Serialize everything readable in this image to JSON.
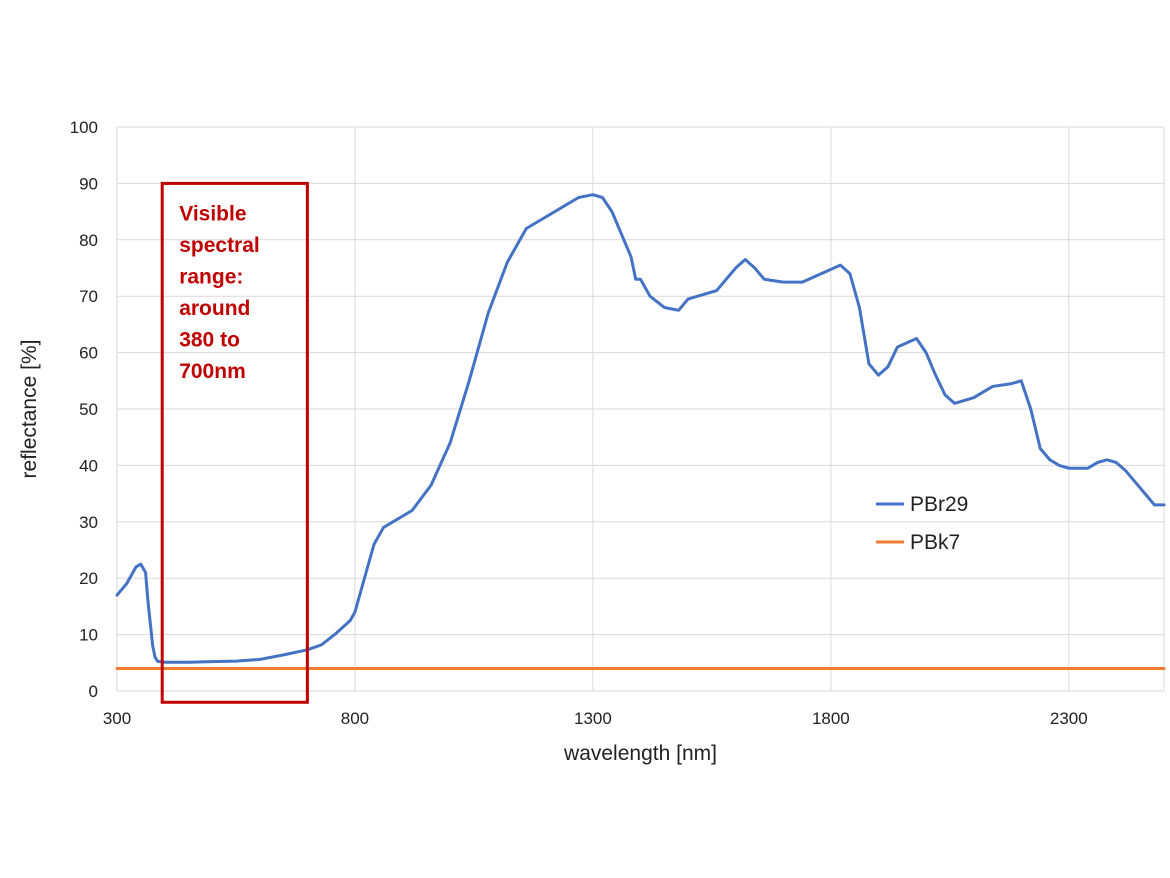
{
  "chart_data": {
    "type": "line",
    "xlabel": "wavelength [nm]",
    "ylabel": "reflectance [%]",
    "xlim": [
      300,
      2500
    ],
    "ylim": [
      0,
      100
    ],
    "xticks": [
      300,
      800,
      1300,
      1800,
      2300
    ],
    "yticks": [
      0,
      10,
      20,
      30,
      40,
      50,
      60,
      70,
      80,
      90,
      100
    ],
    "grid": true,
    "legend_position": "right",
    "series": [
      {
        "name": "PBr29",
        "color": "#4472c4",
        "x": [
          300,
          320,
          340,
          350,
          360,
          365,
          375,
          380,
          385,
          390,
          400,
          450,
          500,
          550,
          600,
          650,
          700,
          730,
          760,
          790,
          800,
          820,
          840,
          860,
          880,
          920,
          960,
          1000,
          1040,
          1080,
          1120,
          1160,
          1200,
          1240,
          1270,
          1300,
          1320,
          1340,
          1360,
          1380,
          1390,
          1400,
          1420,
          1450,
          1480,
          1500,
          1520,
          1560,
          1600,
          1620,
          1640,
          1660,
          1700,
          1740,
          1780,
          1820,
          1840,
          1860,
          1880,
          1900,
          1920,
          1940,
          1980,
          2000,
          2020,
          2040,
          2060,
          2080,
          2100,
          2140,
          2180,
          2200,
          2220,
          2240,
          2260,
          2280,
          2300,
          2340,
          2360,
          2380,
          2400,
          2420,
          2440,
          2460,
          2480,
          2500
        ],
        "values": [
          17,
          19,
          22,
          22.5,
          21,
          16,
          8,
          6,
          5.3,
          5.2,
          5.1,
          5.1,
          5.2,
          5.3,
          5.6,
          6.4,
          7.3,
          8.2,
          10.2,
          12.5,
          14,
          20,
          26,
          29,
          30,
          32,
          36.5,
          44,
          55,
          67,
          76,
          82,
          84,
          86,
          87.5,
          88,
          87.5,
          85,
          81,
          77,
          73,
          73,
          70,
          68,
          67.5,
          69.5,
          70,
          71,
          75,
          76.5,
          75,
          73,
          72.5,
          72.5,
          74,
          75.5,
          74,
          68,
          58,
          56,
          57.5,
          61,
          62.5,
          60,
          56,
          52.5,
          51,
          51.5,
          52,
          54,
          54.5,
          55,
          50,
          43,
          41,
          40,
          39.5,
          39.5,
          40.5,
          41,
          40.5,
          39,
          37,
          35,
          33,
          33
        ]
      },
      {
        "name": "PBk7",
        "color": "#ed7d31",
        "x": [
          300,
          2500
        ],
        "values": [
          4,
          4
        ]
      }
    ],
    "annotations": [
      {
        "type": "box",
        "x_range": [
          395,
          700
        ],
        "y_range": [
          -2,
          90
        ],
        "color": "#c00000",
        "lines": [
          "Visible",
          "spectral",
          "range:",
          "around",
          "380 to",
          "700nm"
        ]
      }
    ]
  }
}
